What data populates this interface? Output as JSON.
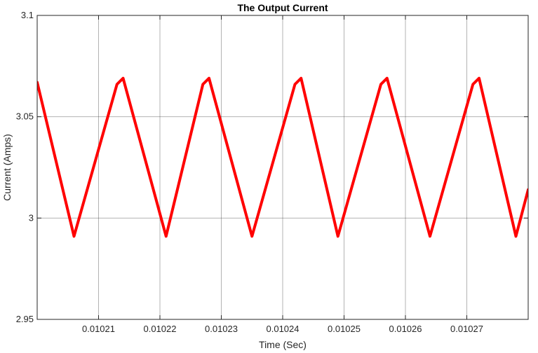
{
  "chart_data": {
    "type": "line",
    "title": "The Output Current",
    "xlabel": "Time (Sec)",
    "ylabel": "Current (Amps)",
    "xlim": [
      0.0102,
      0.01028
    ],
    "ylim": [
      2.95,
      3.1
    ],
    "grid": true,
    "x_ticks": [
      0.01021,
      0.01022,
      0.01023,
      0.01024,
      0.01025,
      0.01026,
      0.01027
    ],
    "x_tick_labels": [
      "0.01021",
      "0.01022",
      "0.01023",
      "0.01024",
      "0.01025",
      "0.01026",
      "0.01027"
    ],
    "y_ticks": [
      2.95,
      3.0,
      3.05,
      3.1
    ],
    "y_tick_labels": [
      "2.95",
      "3",
      "3.05",
      "3.1"
    ],
    "series": [
      {
        "color": "#ff0000",
        "x": [
          0.0102,
          0.010206,
          0.010213,
          0.010214,
          0.010221,
          0.010227,
          0.010228,
          0.010235,
          0.010242,
          0.010243,
          0.010249,
          0.010256,
          0.010257,
          0.010264,
          0.010271,
          0.010272,
          0.010278,
          0.01028
        ],
        "y": [
          3.067,
          2.991,
          3.066,
          3.069,
          2.991,
          3.066,
          3.069,
          2.991,
          3.066,
          3.069,
          2.991,
          3.066,
          3.069,
          2.991,
          3.066,
          3.069,
          2.991,
          3.014
        ]
      }
    ]
  }
}
